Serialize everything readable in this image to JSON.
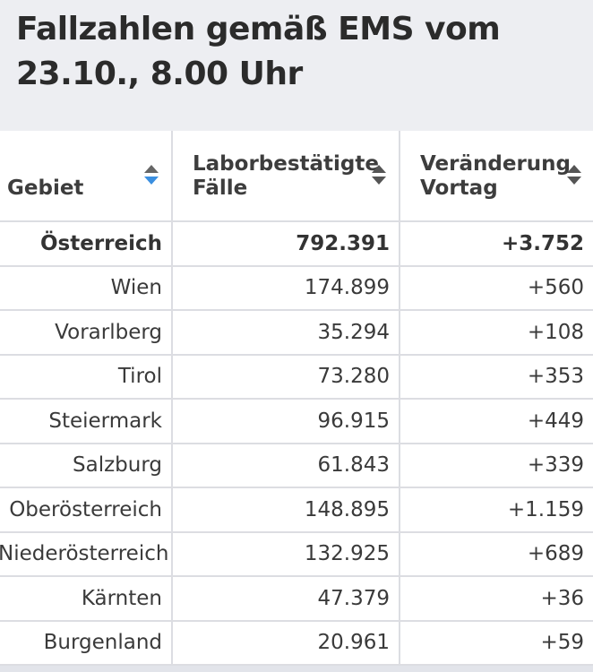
{
  "page_title": "Fallzahlen gemäß EMS vom 23.10., 8.00 Uhr",
  "table": {
    "headers": [
      {
        "label": "Gebiet",
        "sort_active": true
      },
      {
        "label": "Laborbestätigte Fälle",
        "sort_active": false
      },
      {
        "label": "Veränderung Vortag",
        "sort_active": false
      }
    ],
    "rows": [
      {
        "region": "Österreich",
        "cases": "792.391",
        "change": "+3.752",
        "total": true
      },
      {
        "region": "Wien",
        "cases": "174.899",
        "change": "+560"
      },
      {
        "region": "Vorarlberg",
        "cases": "35.294",
        "change": "+108"
      },
      {
        "region": "Tirol",
        "cases": "73.280",
        "change": "+353"
      },
      {
        "region": "Steiermark",
        "cases": "96.915",
        "change": "+449"
      },
      {
        "region": "Salzburg",
        "cases": "61.843",
        "change": "+339"
      },
      {
        "region": "Oberösterreich",
        "cases": "148.895",
        "change": "+1.159"
      },
      {
        "region": "Niederösterreich",
        "cases": "132.925",
        "change": "+689"
      },
      {
        "region": "Kärnten",
        "cases": "47.379",
        "change": "+36"
      },
      {
        "region": "Burgenland",
        "cases": "20.961",
        "change": "+59"
      }
    ]
  },
  "colors": {
    "background": "#edeef2",
    "sort_active": "#3b8fe0",
    "grid": "#dcdde2"
  }
}
